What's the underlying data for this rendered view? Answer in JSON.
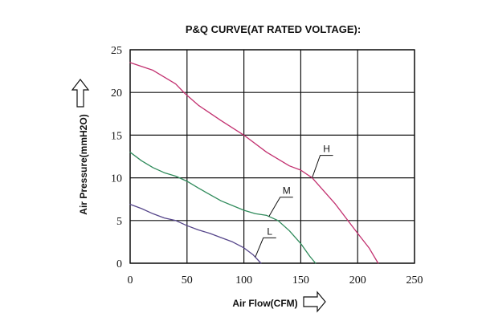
{
  "chart_data": {
    "type": "line",
    "title": "P&Q CURVE(AT RATED VOLTAGE):",
    "xlabel": "Air Flow(CFM)",
    "ylabel": "Air Pressure(mmH2O)",
    "xlim": [
      0,
      250
    ],
    "ylim": [
      0,
      25
    ],
    "x_ticks": [
      "0",
      "50",
      "100",
      "150",
      "200",
      "250"
    ],
    "y_ticks": [
      "0",
      "5",
      "10",
      "15",
      "20",
      "25"
    ],
    "grid": true,
    "series": [
      {
        "name": "H",
        "color": "#c2306f",
        "x": [
          0,
          20,
          40,
          48,
          60,
          80,
          100,
          120,
          140,
          150,
          160,
          180,
          200,
          210,
          218
        ],
        "y": [
          23.5,
          22.6,
          21,
          19.9,
          18.5,
          16.7,
          15,
          13,
          11.4,
          10.9,
          10,
          7,
          3.5,
          1.8,
          0
        ]
      },
      {
        "name": "M",
        "color": "#2e8a5a",
        "x": [
          0,
          10,
          20,
          30,
          40,
          50,
          60,
          80,
          100,
          110,
          120,
          130,
          140,
          150,
          158,
          163
        ],
        "y": [
          13,
          12,
          11.2,
          10.6,
          10.2,
          9.6,
          8.8,
          7.3,
          6.2,
          5.8,
          5.6,
          5,
          3.8,
          2.3,
          0.8,
          0
        ]
      },
      {
        "name": "L",
        "color": "#55458a",
        "x": [
          0,
          10,
          20,
          30,
          40,
          50,
          60,
          70,
          80,
          90,
          100,
          108,
          115
        ],
        "y": [
          6.9,
          6.4,
          5.8,
          5.3,
          5,
          4.4,
          3.9,
          3.5,
          3,
          2.5,
          1.8,
          1,
          0
        ]
      }
    ]
  },
  "colors": {
    "axis": "#111111",
    "background": "#ffffff"
  },
  "icons": {
    "y_axis_arrow": "arrow-up-icon",
    "x_axis_arrow": "arrow-right-icon"
  }
}
